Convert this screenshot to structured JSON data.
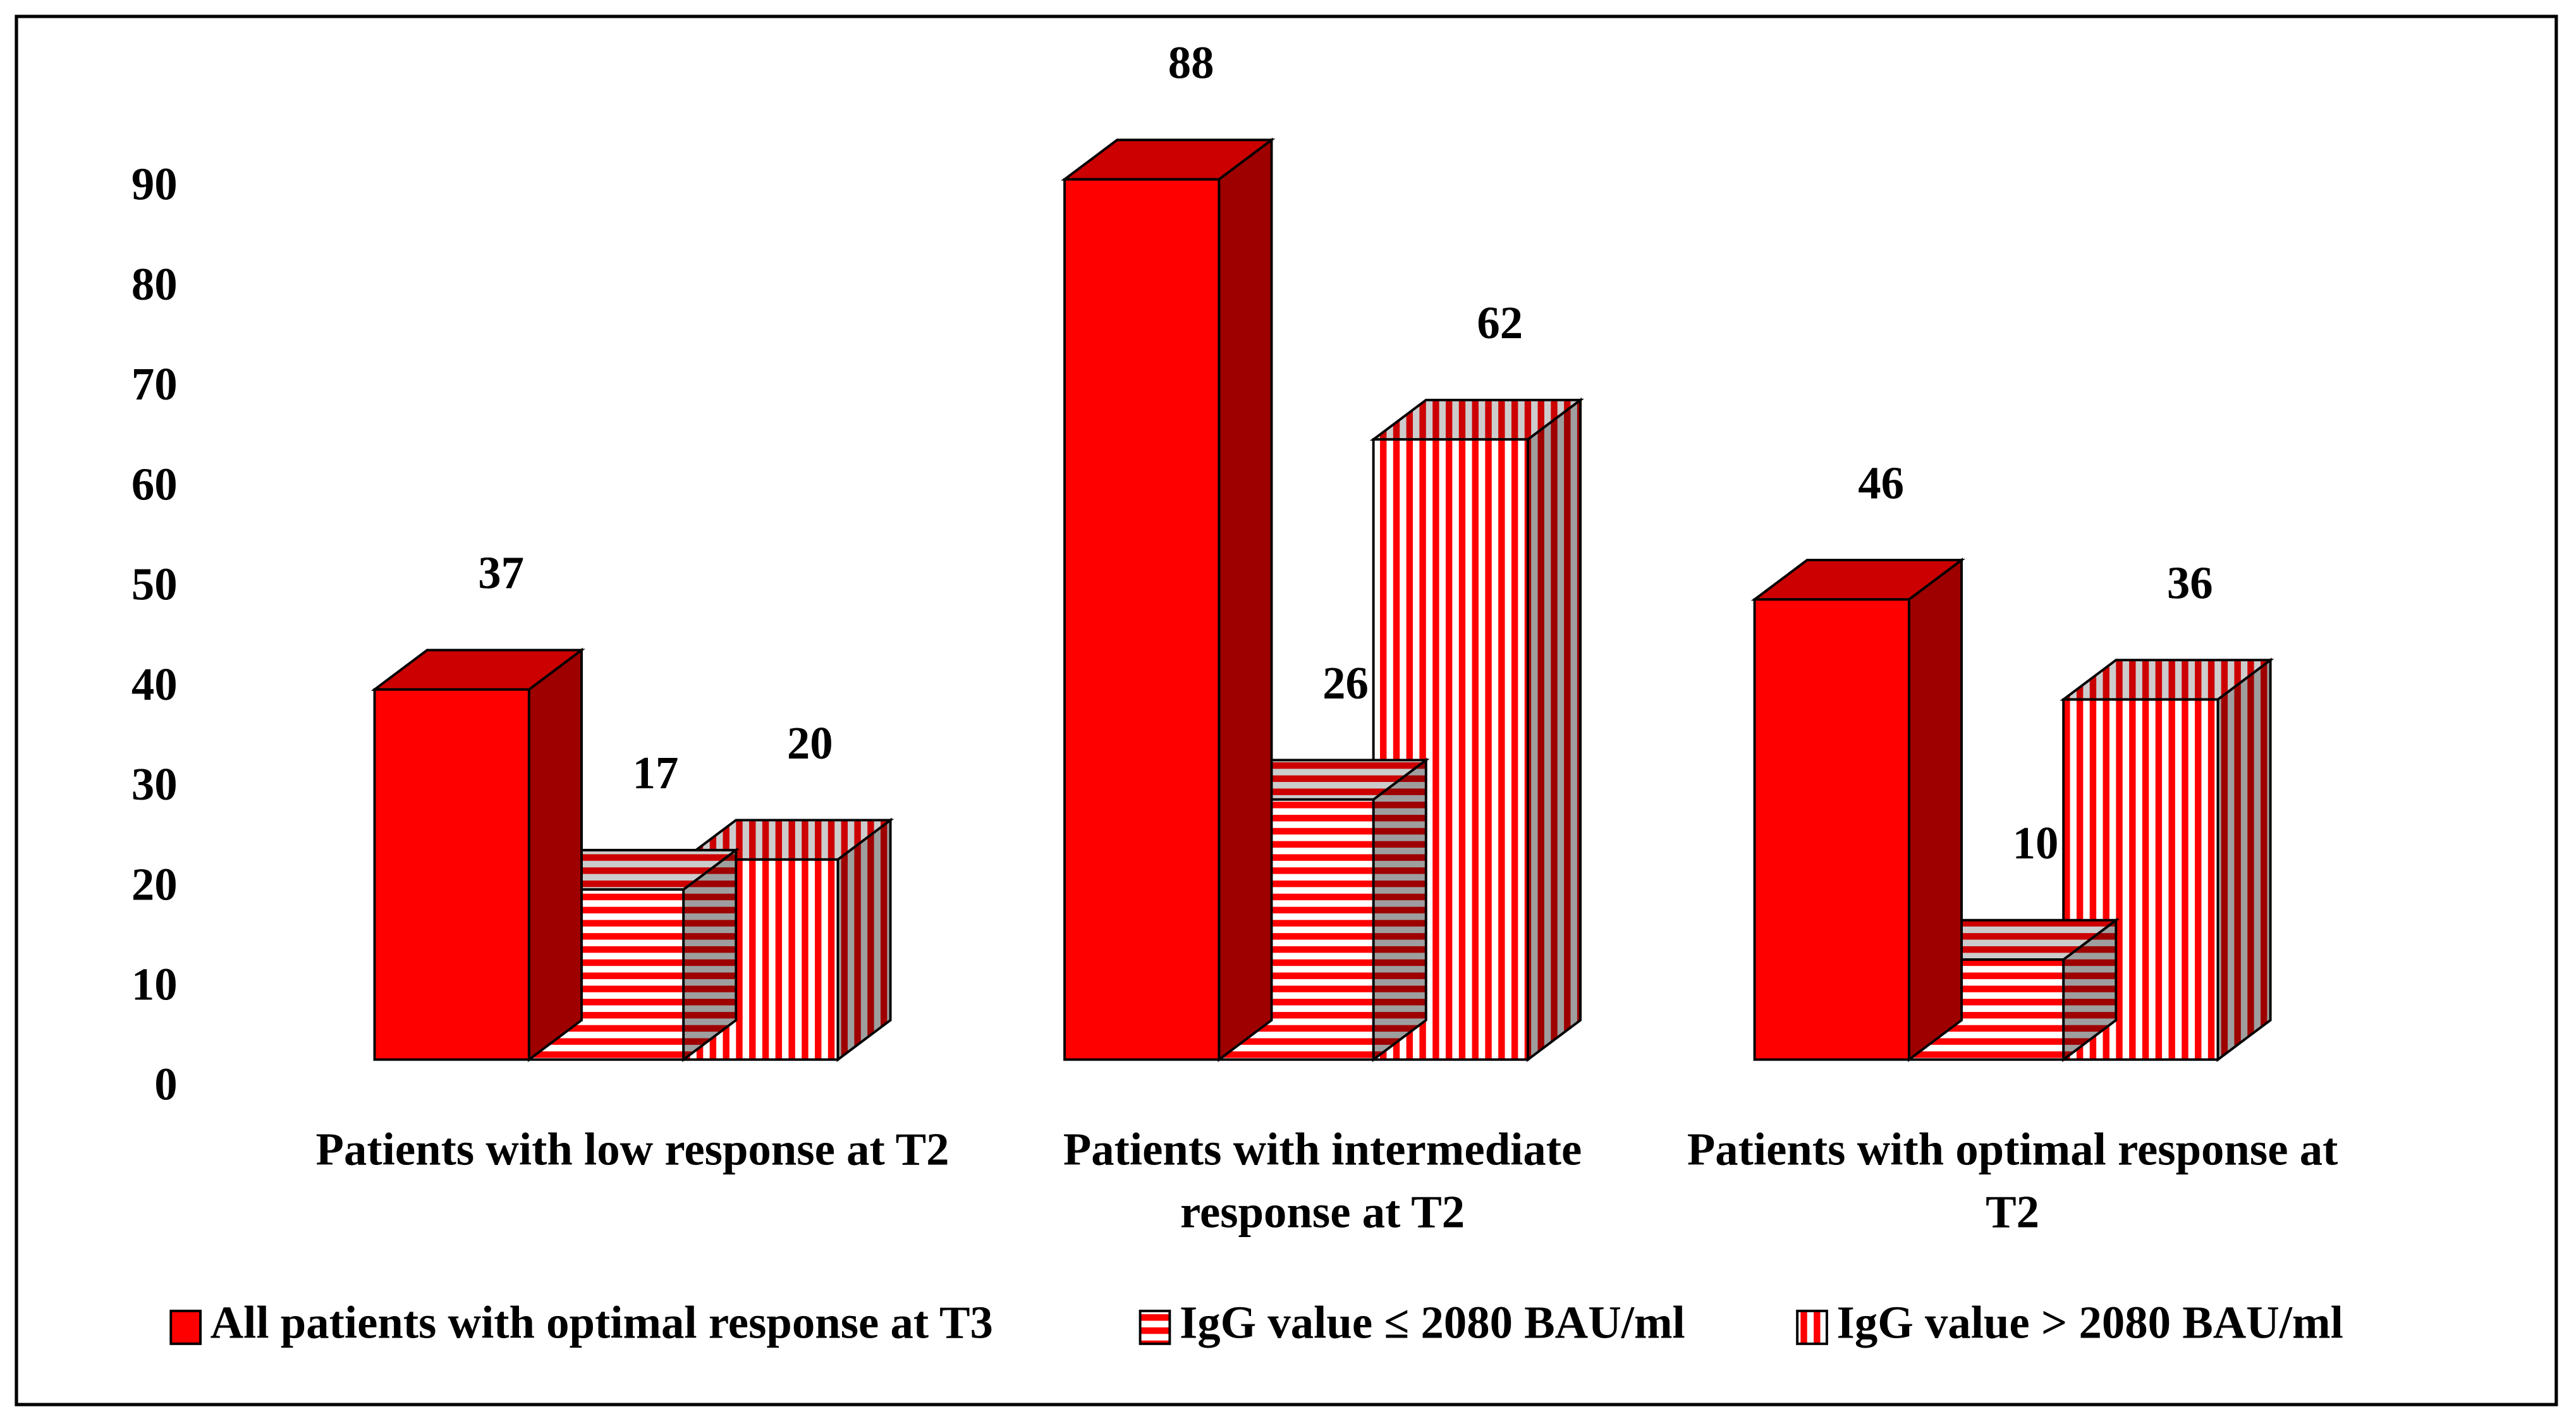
{
  "chart_data": {
    "type": "bar3d",
    "categories": [
      "Patients with low response at T2",
      "Patients with intermediate response at T2",
      "Patients with optimal response at T2"
    ],
    "series": [
      {
        "name": "All patients with optimal response at T3",
        "color": "#ff0000",
        "pattern": "solid",
        "values": [
          37,
          88,
          46
        ]
      },
      {
        "name": "IgG value ≤ 2080 BAU/ml",
        "color": "#ff0000",
        "pattern": "horizontal",
        "values": [
          17,
          26,
          10
        ]
      },
      {
        "name": "IgG value > 2080 BAU/ml",
        "color": "#ff0000",
        "pattern": "vertical",
        "values": [
          20,
          62,
          36
        ]
      }
    ],
    "ylim": [
      0,
      90
    ],
    "yticks": [
      0,
      10,
      20,
      30,
      40,
      50,
      60,
      70,
      80,
      90
    ],
    "grid": false,
    "legend": "bottom"
  }
}
